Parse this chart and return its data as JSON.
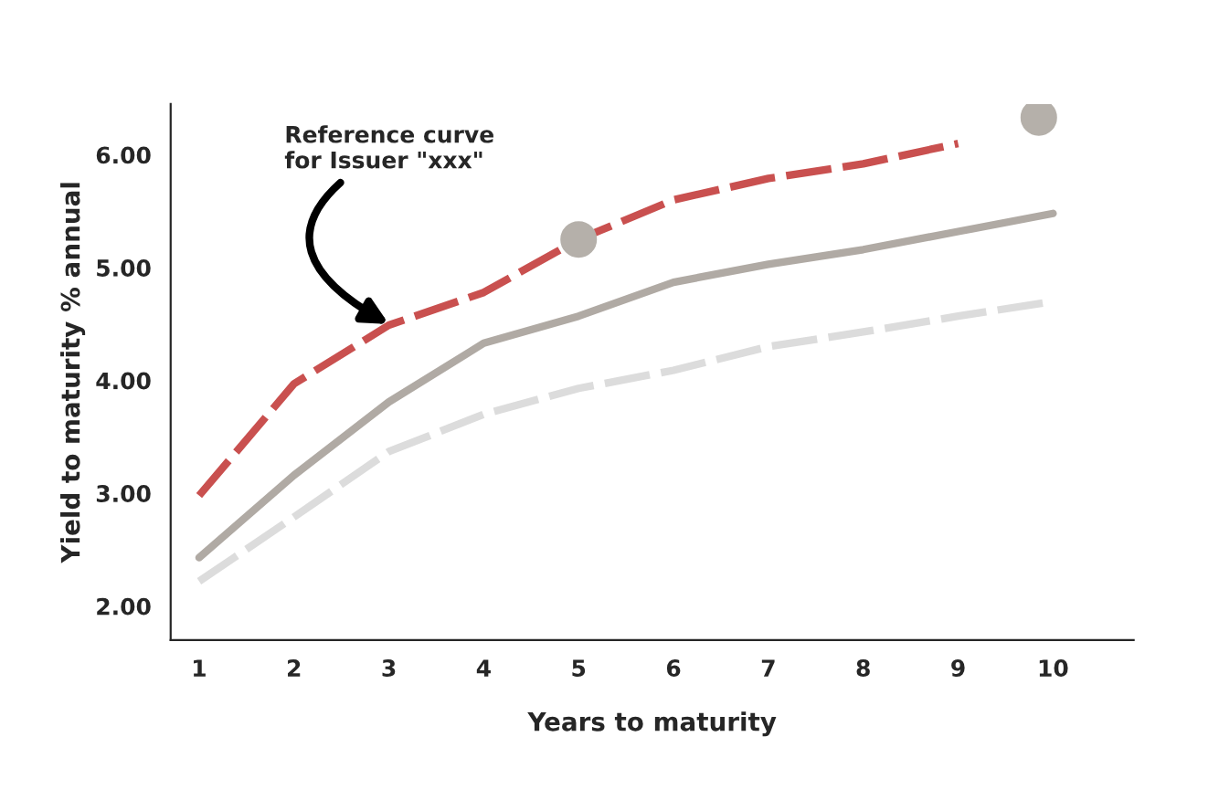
{
  "chart_data": {
    "type": "line",
    "xlabel": "Years to maturity",
    "ylabel": "Yield to maturity % annual",
    "xlim": [
      0.7,
      10.85
    ],
    "ylim": [
      1.7,
      6.45
    ],
    "xticks": [
      1,
      2,
      3,
      4,
      5,
      6,
      7,
      8,
      9,
      10
    ],
    "yticks": [
      {
        "value": 2,
        "label": "2.00"
      },
      {
        "value": 3,
        "label": "3.00"
      },
      {
        "value": 4,
        "label": "4.00"
      },
      {
        "value": 5,
        "label": "5.00"
      },
      {
        "value": 6,
        "label": "6.00"
      }
    ],
    "grid": false,
    "legend": false,
    "x": [
      1,
      2,
      3,
      4,
      5,
      6,
      7,
      8,
      9,
      10
    ],
    "series": [
      {
        "color": "#c9504f",
        "line_style": "dashed",
        "marker": "none",
        "values": [
          2.98,
          3.97,
          4.49,
          4.78,
          5.25,
          5.6,
          5.79,
          5.92,
          6.1,
          null
        ]
      },
      {
        "color": "#b0aaa4",
        "line_style": "solid",
        "marker": "none",
        "values": [
          2.43,
          3.16,
          3.81,
          4.33,
          4.57,
          4.87,
          5.03,
          5.16,
          5.32,
          5.48
        ]
      },
      {
        "color": "#dcdcdc",
        "line_style": "dashed",
        "marker": "none",
        "values": [
          2.22,
          2.79,
          3.37,
          3.7,
          3.93,
          4.09,
          4.3,
          4.43,
          4.57,
          4.7
        ]
      },
      {
        "type": "scatter",
        "color": "#b5b0aa",
        "marker": "circle",
        "x": [
          5,
          9.85
        ],
        "values": [
          5.25,
          6.33
        ]
      }
    ],
    "annotations": [
      {
        "text": "Reference curve\nfor Issuer \"xxx\"",
        "x": 3,
        "y": 4.5
      }
    ]
  }
}
